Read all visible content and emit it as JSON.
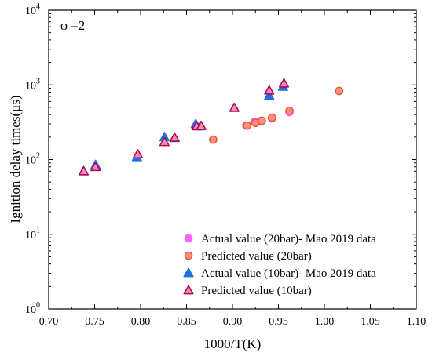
{
  "chart_data": {
    "type": "scatter",
    "annotation": "ϕ =2",
    "xlabel": "1000/T(K)",
    "ylabel": "Ignition delay times(μs)",
    "xlim": [
      0.7,
      1.1
    ],
    "ylim": [
      1,
      10000
    ],
    "y_scale": "log",
    "x_ticks": [
      "0.70",
      "0.75",
      "0.80",
      "0.85",
      "0.90",
      "0.95",
      "1.00",
      "1.05",
      "1.10"
    ],
    "y_ticks": [
      {
        "value": 1,
        "base": "10",
        "exp": "0"
      },
      {
        "value": 10,
        "base": "10",
        "exp": "1"
      },
      {
        "value": 100,
        "base": "10",
        "exp": "2"
      },
      {
        "value": 1000,
        "base": "10",
        "exp": "3"
      },
      {
        "value": 10000,
        "base": "10",
        "exp": "4"
      }
    ],
    "grid": false,
    "legend_position": "bottom-right",
    "series": [
      {
        "name": "Actual value (20bar)- Mao 2019 data",
        "marker": "circle",
        "fill": "#ff66ff",
        "stroke": "#ff66ff",
        "x": [
          0.915,
          0.924,
          0.931,
          0.943,
          0.962
        ],
        "y": [
          285,
          320,
          330,
          355,
          430
        ]
      },
      {
        "name": "Predicted value (20bar)",
        "marker": "circle",
        "fill": "#ff8f7d",
        "stroke": "#e8503a",
        "x": [
          0.879,
          0.916,
          0.925,
          0.932,
          0.943,
          0.962,
          1.016
        ],
        "y": [
          185,
          285,
          310,
          330,
          365,
          450,
          830
        ]
      },
      {
        "name": "Actual value (10bar)- Mao 2019 data",
        "marker": "triangle",
        "fill": "#1f6fe0",
        "stroke": "#1f6fe0",
        "x": [
          0.738,
          0.751,
          0.796,
          0.826,
          0.837,
          0.86,
          0.865,
          0.94,
          0.955
        ],
        "y": [
          70,
          85,
          108,
          200,
          195,
          300,
          280,
          720,
          950
        ]
      },
      {
        "name": "Predicted value (10bar)",
        "marker": "triangle",
        "fill": "#e88fb5",
        "stroke": "#b5004f",
        "x": [
          0.738,
          0.751,
          0.797,
          0.826,
          0.837,
          0.861,
          0.866,
          0.902,
          0.94,
          0.956
        ],
        "y": [
          70,
          80,
          118,
          172,
          197,
          280,
          283,
          495,
          845,
          1050
        ]
      }
    ]
  }
}
